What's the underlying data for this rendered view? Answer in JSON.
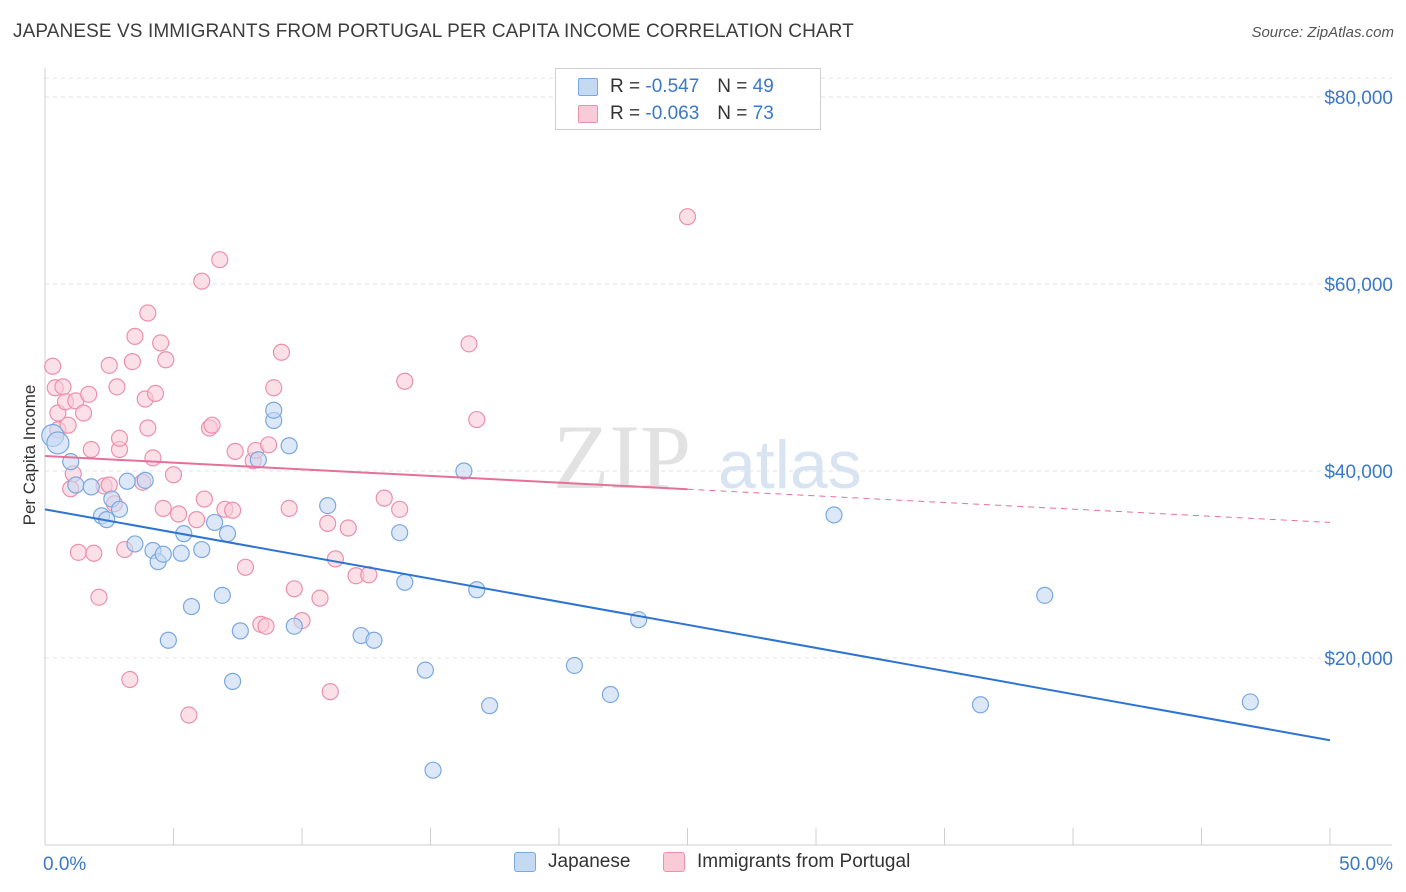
{
  "title": "JAPANESE VS IMMIGRANTS FROM PORTUGAL PER CAPITA INCOME CORRELATION CHART",
  "source": "Source: ZipAtlas.com",
  "watermark": {
    "zip": "ZIP",
    "atlas": "atlas"
  },
  "legend": {
    "r_label": "R =",
    "n_label": "N =",
    "japanese": {
      "r": "-0.547",
      "n": "49"
    },
    "portugal": {
      "r": "-0.063",
      "n": "73"
    }
  },
  "colors": {
    "japanese_fill": "#c5d9f2",
    "japanese_stroke": "#7aa8e0",
    "japanese_line": "#2e74d1",
    "portugal_fill": "#f9cbd9",
    "portugal_stroke": "#ec90ad",
    "portugal_line": "#e5709a",
    "axis_text": "#3a78c9",
    "grid": "#e3e3e3"
  },
  "chart_data": {
    "type": "scatter",
    "title": "JAPANESE VS IMMIGRANTS FROM PORTUGAL PER CAPITA INCOME CORRELATION CHART",
    "xlabel": "",
    "ylabel": "Per Capita Income",
    "xlim": [
      0,
      50
    ],
    "ylim": [
      0,
      82000
    ],
    "x_tick_labels": [
      "0.0%",
      "50.0%"
    ],
    "y_ticks": [
      20000,
      40000,
      60000,
      80000
    ],
    "y_tick_labels": [
      "$20,000",
      "$40,000",
      "$60,000",
      "$80,000"
    ],
    "grid": "horizontal dashed",
    "legend_position": "top-center",
    "series": [
      {
        "name": "Japanese",
        "r": -0.547,
        "n": 49,
        "trend": {
          "x": [
            0,
            50
          ],
          "y": [
            35900,
            11200
          ],
          "dashed_from": null
        },
        "points": [
          [
            0.3,
            43800
          ],
          [
            0.5,
            43000
          ],
          [
            1.0,
            41000
          ],
          [
            1.2,
            38500
          ],
          [
            1.8,
            38300
          ],
          [
            2.2,
            35200
          ],
          [
            2.4,
            34800
          ],
          [
            2.6,
            37000
          ],
          [
            2.9,
            35900
          ],
          [
            3.2,
            38900
          ],
          [
            3.5,
            32200
          ],
          [
            3.9,
            39000
          ],
          [
            4.2,
            31500
          ],
          [
            4.4,
            30300
          ],
          [
            4.6,
            31100
          ],
          [
            4.8,
            21900
          ],
          [
            5.3,
            31200
          ],
          [
            5.4,
            33300
          ],
          [
            5.7,
            25500
          ],
          [
            6.1,
            31600
          ],
          [
            6.6,
            34500
          ],
          [
            6.9,
            26700
          ],
          [
            7.1,
            33300
          ],
          [
            7.3,
            17500
          ],
          [
            7.6,
            22900
          ],
          [
            8.3,
            41200
          ],
          [
            8.9,
            45400
          ],
          [
            8.9,
            46500
          ],
          [
            9.5,
            42700
          ],
          [
            9.7,
            23400
          ],
          [
            11.0,
            36300
          ],
          [
            12.3,
            22400
          ],
          [
            12.8,
            21900
          ],
          [
            13.8,
            33400
          ],
          [
            14.0,
            28100
          ],
          [
            14.8,
            18700
          ],
          [
            15.1,
            8000
          ],
          [
            16.3,
            40000
          ],
          [
            16.8,
            27300
          ],
          [
            17.3,
            14900
          ],
          [
            20.6,
            19200
          ],
          [
            22.0,
            16100
          ],
          [
            23.1,
            24100
          ],
          [
            30.7,
            35300
          ],
          [
            36.4,
            15000
          ],
          [
            38.9,
            26700
          ],
          [
            46.9,
            15300
          ]
        ]
      },
      {
        "name": "Immigrants from Portugal",
        "r": -0.063,
        "n": 73,
        "trend": {
          "x": [
            0,
            50
          ],
          "y": [
            41600,
            34500
          ],
          "dashed_from": 25
        },
        "points": [
          [
            0.3,
            51200
          ],
          [
            0.4,
            48900
          ],
          [
            0.5,
            44400
          ],
          [
            0.5,
            46200
          ],
          [
            0.7,
            49000
          ],
          [
            0.8,
            47400
          ],
          [
            0.9,
            44900
          ],
          [
            1.0,
            38100
          ],
          [
            1.1,
            39700
          ],
          [
            1.2,
            47500
          ],
          [
            1.3,
            31300
          ],
          [
            1.5,
            46200
          ],
          [
            1.7,
            48200
          ],
          [
            1.8,
            42300
          ],
          [
            1.9,
            31200
          ],
          [
            2.1,
            26500
          ],
          [
            2.3,
            38400
          ],
          [
            2.5,
            38500
          ],
          [
            2.5,
            51300
          ],
          [
            2.7,
            36500
          ],
          [
            2.8,
            49000
          ],
          [
            2.9,
            42300
          ],
          [
            2.9,
            43500
          ],
          [
            3.1,
            31600
          ],
          [
            3.3,
            17700
          ],
          [
            3.4,
            51700
          ],
          [
            3.5,
            54400
          ],
          [
            3.8,
            38800
          ],
          [
            3.9,
            47700
          ],
          [
            4.0,
            44600
          ],
          [
            4.0,
            56900
          ],
          [
            4.2,
            41400
          ],
          [
            4.3,
            48300
          ],
          [
            4.5,
            53700
          ],
          [
            4.6,
            36000
          ],
          [
            4.7,
            51900
          ],
          [
            5.0,
            39600
          ],
          [
            5.2,
            35400
          ],
          [
            5.6,
            13900
          ],
          [
            5.9,
            34800
          ],
          [
            6.1,
            60300
          ],
          [
            6.2,
            37000
          ],
          [
            6.4,
            44600
          ],
          [
            6.5,
            44900
          ],
          [
            6.8,
            62600
          ],
          [
            7.0,
            35900
          ],
          [
            7.3,
            35800
          ],
          [
            7.4,
            42100
          ],
          [
            7.8,
            29700
          ],
          [
            8.1,
            41100
          ],
          [
            8.2,
            42200
          ],
          [
            8.4,
            23600
          ],
          [
            8.6,
            23400
          ],
          [
            8.7,
            42800
          ],
          [
            8.9,
            48900
          ],
          [
            9.2,
            52700
          ],
          [
            9.5,
            36000
          ],
          [
            9.7,
            27400
          ],
          [
            10.0,
            24000
          ],
          [
            10.7,
            26400
          ],
          [
            11.0,
            34400
          ],
          [
            11.1,
            16400
          ],
          [
            11.3,
            30600
          ],
          [
            11.8,
            33900
          ],
          [
            12.1,
            28800
          ],
          [
            12.6,
            28900
          ],
          [
            13.2,
            37100
          ],
          [
            13.8,
            35900
          ],
          [
            14.0,
            49600
          ],
          [
            16.5,
            53600
          ],
          [
            16.8,
            45500
          ],
          [
            25.0,
            67200
          ]
        ]
      }
    ]
  },
  "bottom_legend": {
    "japanese": "Japanese",
    "portugal": "Immigrants from Portugal"
  }
}
